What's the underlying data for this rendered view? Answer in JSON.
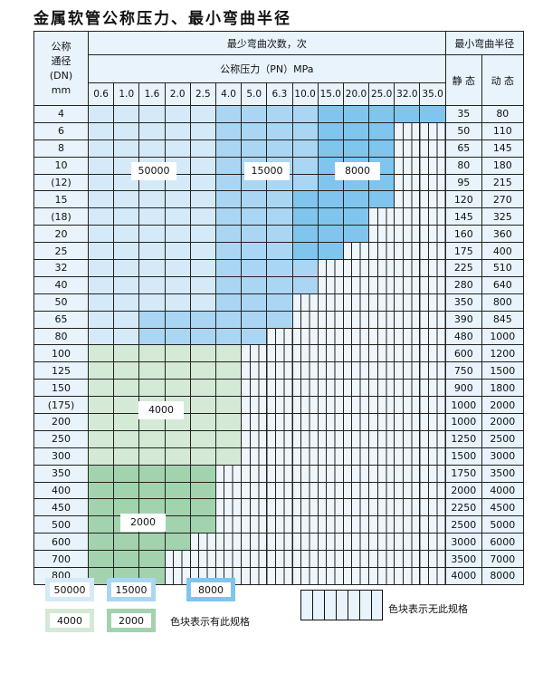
{
  "title": "金属软管公称压力、最小弯曲半径",
  "header": {
    "dn_label": [
      "公称",
      "通径",
      "(DN)",
      "mm"
    ],
    "bend_count_label": "最少弯曲次数，次",
    "pressure_label": "公称压力（PN）MPa",
    "radius_label": "最小弯曲半径",
    "static_label": "静 态",
    "dynamic_label": "动 态",
    "pressures": [
      "0.6",
      "1.0",
      "1.6",
      "2.0",
      "2.5",
      "4.0",
      "5.0",
      "6.3",
      "10.0",
      "15.0",
      "20.0",
      "25.0",
      "32.0",
      "35.0"
    ]
  },
  "categories": {
    "A": {
      "value": "50000",
      "color": "#d5eaf8"
    },
    "B": {
      "value": "15000",
      "color": "#aad6f3"
    },
    "C": {
      "value": "8000",
      "color": "#7fc5ee"
    },
    "D": {
      "value": "4000",
      "color": "#d4e9d6"
    },
    "E": {
      "value": "2000",
      "color": "#a2d3ae"
    }
  },
  "rows": [
    {
      "dn": "4",
      "static": "35",
      "dynamic": "80",
      "cells": "AAAAABBBBCCCCC"
    },
    {
      "dn": "6",
      "static": "50",
      "dynamic": "110",
      "cells": "AAAAABBBBCCC"
    },
    {
      "dn": "8",
      "static": "65",
      "dynamic": "145",
      "cells": "AAAAABBBBCCC"
    },
    {
      "dn": "10",
      "static": "80",
      "dynamic": "180",
      "cells": "AAAAABBBBCCC"
    },
    {
      "dn": "(12)",
      "static": "95",
      "dynamic": "215",
      "cells": "AAAAABBBBCCC"
    },
    {
      "dn": "15",
      "static": "120",
      "dynamic": "270",
      "cells": "AAAAABBBCCCC"
    },
    {
      "dn": "(18)",
      "static": "145",
      "dynamic": "325",
      "cells": "AAAAABBBCCC"
    },
    {
      "dn": "20",
      "static": "160",
      "dynamic": "360",
      "cells": "AAAAABBBCCC"
    },
    {
      "dn": "25",
      "static": "175",
      "dynamic": "400",
      "cells": "AAAAABBBCC"
    },
    {
      "dn": "32",
      "static": "225",
      "dynamic": "510",
      "cells": "AAAAABBBB"
    },
    {
      "dn": "40",
      "static": "280",
      "dynamic": "640",
      "cells": "AAAAABBBB"
    },
    {
      "dn": "50",
      "static": "350",
      "dynamic": "800",
      "cells": "AAAAABBB"
    },
    {
      "dn": "65",
      "static": "390",
      "dynamic": "845",
      "cells": "AABBBBBB"
    },
    {
      "dn": "80",
      "static": "480",
      "dynamic": "1000",
      "cells": "AABBBBB"
    },
    {
      "dn": "100",
      "static": "600",
      "dynamic": "1200",
      "cells": "DDDDDD"
    },
    {
      "dn": "125",
      "static": "750",
      "dynamic": "1500",
      "cells": "DDDDDD"
    },
    {
      "dn": "150",
      "static": "900",
      "dynamic": "1800",
      "cells": "DDDDDD"
    },
    {
      "dn": "(175)",
      "static": "1000",
      "dynamic": "2000",
      "cells": "DDDDDD"
    },
    {
      "dn": "200",
      "static": "1000",
      "dynamic": "2000",
      "cells": "DDDDDD"
    },
    {
      "dn": "250",
      "static": "1250",
      "dynamic": "2500",
      "cells": "DDDDDD"
    },
    {
      "dn": "300",
      "static": "1500",
      "dynamic": "3000",
      "cells": "DDDDDD"
    },
    {
      "dn": "350",
      "static": "1750",
      "dynamic": "3500",
      "cells": "EEEEE"
    },
    {
      "dn": "400",
      "static": "2000",
      "dynamic": "4000",
      "cells": "EEEEE"
    },
    {
      "dn": "450",
      "static": "2250",
      "dynamic": "4500",
      "cells": "EEEEE"
    },
    {
      "dn": "500",
      "static": "2500",
      "dynamic": "5000",
      "cells": "EEEEE"
    },
    {
      "dn": "600",
      "static": "3000",
      "dynamic": "6000",
      "cells": "EEEE"
    },
    {
      "dn": "700",
      "static": "3500",
      "dynamic": "7000",
      "cells": "EEE"
    },
    {
      "dn": "800",
      "static": "4000",
      "dynamic": "8000",
      "cells": "EEE"
    }
  ],
  "legend": {
    "has_spec_text": "色块表示有此规格",
    "no_spec_text": "色块表示无此规格"
  }
}
